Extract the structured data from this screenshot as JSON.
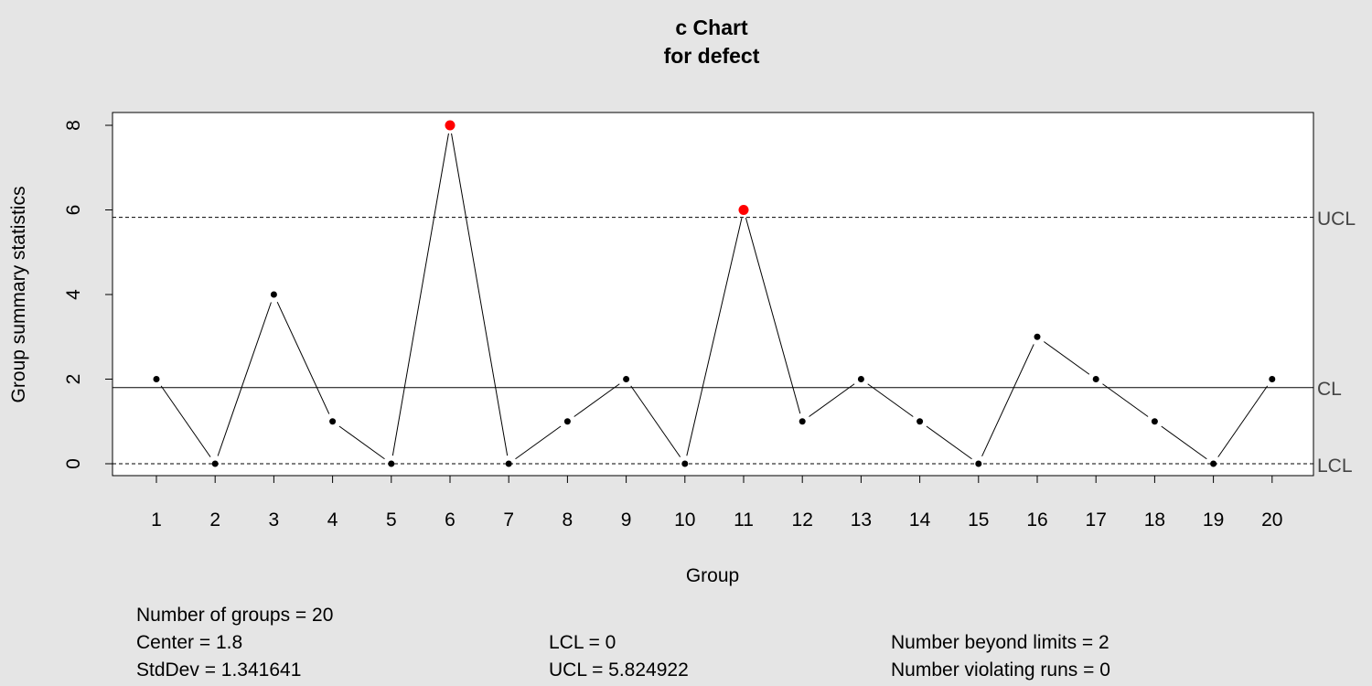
{
  "chart_data": {
    "type": "line",
    "title": "c Chart",
    "subtitle": "for defect",
    "xlabel": "Group",
    "ylabel": "Group summary statistics",
    "x": [
      1,
      2,
      3,
      4,
      5,
      6,
      7,
      8,
      9,
      10,
      11,
      12,
      13,
      14,
      15,
      16,
      17,
      18,
      19,
      20
    ],
    "series": [
      {
        "values": [
          2,
          0,
          4,
          1,
          0,
          8,
          0,
          1,
          2,
          0,
          6,
          1,
          2,
          1,
          0,
          3,
          2,
          1,
          0,
          2
        ]
      }
    ],
    "ylim": [
      0,
      8
    ],
    "yticks": [
      0,
      2,
      4,
      6,
      8
    ],
    "limits": {
      "CL": 1.8,
      "UCL": 5.824922,
      "LCL": 0
    },
    "limit_labels": {
      "ucl": "UCL",
      "cl": "CL",
      "lcl": "LCL"
    },
    "beyond_limits": [
      6,
      11
    ],
    "colors": {
      "point": "#000000",
      "violation": "#ff0000",
      "plot_bg": "#ffffff",
      "figure_bg": "#e5e5e5"
    },
    "grid": false
  },
  "stats": {
    "num_groups": "Number of groups = 20",
    "center": "Center = 1.8",
    "stddev": "StdDev = 1.341641",
    "lcl": "LCL = 0",
    "ucl": "UCL = 5.824922",
    "beyond": "Number beyond limits = 2",
    "violating": "Number violating runs = 0"
  }
}
